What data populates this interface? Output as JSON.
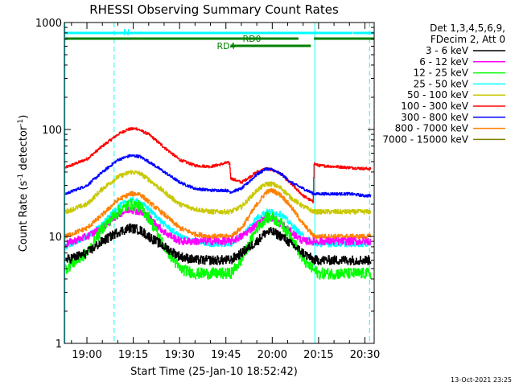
{
  "chart_data": {
    "type": "line",
    "title": "RHESSI Observing Summary Count Rates",
    "xlabel": "Start Time (25-Jan-10 18:52:42)",
    "ylabel_main": "Count Rate (s",
    "ylabel_sup1": "-1",
    "ylabel_mid": " detector",
    "ylabel_sup2": "-1",
    "ylabel_end": ")",
    "y_scale": "log",
    "ylim": [
      1,
      1000
    ],
    "xlim_minutes": [
      -7.3,
      93.0
    ],
    "x_ticks": [
      {
        "m": 0,
        "label": "19:00"
      },
      {
        "m": 15,
        "label": "19:15"
      },
      {
        "m": 30,
        "label": "19:30"
      },
      {
        "m": 45,
        "label": "19:45"
      },
      {
        "m": 60,
        "label": "20:00"
      },
      {
        "m": 75,
        "label": "20:15"
      },
      {
        "m": 90,
        "label": "20:30"
      }
    ],
    "y_ticks": [
      {
        "v": 1,
        "label": "1"
      },
      {
        "v": 10,
        "label": "10"
      },
      {
        "v": 100,
        "label": "100"
      },
      {
        "v": 1000,
        "label": "1000"
      }
    ],
    "legend": {
      "placement": "right",
      "header1": "Det 1,3,4,5,6,9,",
      "header2": "FDecim 2, Att 0",
      "entries": [
        {
          "label": "3 - 6 keV",
          "color": "#000000"
        },
        {
          "label": "6 - 12 keV",
          "color": "#ff00ff"
        },
        {
          "label": "12 - 25 keV",
          "color": "#00ff00"
        },
        {
          "label": "25 - 50 keV",
          "color": "#00ffff"
        },
        {
          "label": "50 - 100 keV",
          "color": "#c8c800"
        },
        {
          "label": "100 - 300 keV",
          "color": "#ff0000"
        },
        {
          "label": "300 - 800 keV",
          "color": "#0000ff"
        },
        {
          "label": "800 - 7000 keV",
          "color": "#ff8000"
        },
        {
          "label": "7000 - 15000 keV",
          "color": "#808000"
        }
      ]
    },
    "flags": [
      {
        "label": "N",
        "color": "#00ffff",
        "segments": [
          [
            -7.0,
            86.0
          ],
          [
            86.2,
            93.0
          ]
        ]
      },
      {
        "label": "RD0",
        "color": "#008000",
        "segments": [
          [
            -7.0,
            68.5
          ],
          [
            73.5,
            93.0
          ]
        ]
      },
      {
        "label": "RD4",
        "color": "#008000",
        "segments": [
          [
            46.5,
            72.5
          ]
        ]
      }
    ],
    "vlines": [
      {
        "m": -7.1,
        "color": "#00ffff",
        "style": "solid"
      },
      {
        "m": 8.8,
        "color": "#00ffff",
        "style": "dashed"
      },
      {
        "m": 73.8,
        "color": "#00ffff",
        "style": "solid"
      },
      {
        "m": 91.5,
        "color": "#00ffff",
        "style": "dashed"
      }
    ],
    "series": [
      {
        "name": "100 - 300 keV",
        "color": "#ff0000",
        "noise": 0.03,
        "x": [
          -7,
          0,
          5,
          10,
          13,
          16,
          20,
          25,
          30,
          35,
          40,
          43,
          45.5,
          46.2,
          46.5,
          50,
          55,
          58,
          60,
          63,
          66,
          70,
          73.2,
          73.5,
          75,
          80,
          85,
          90,
          92
        ],
        "y": [
          44,
          53,
          70,
          90,
          100,
          102,
          90,
          68,
          52,
          46,
          45,
          47,
          49,
          48,
          35,
          32,
          40,
          43,
          42,
          38,
          31,
          24,
          21,
          48,
          46,
          45,
          44,
          43,
          43
        ]
      },
      {
        "name": "300 - 800 keV",
        "color": "#0000ff",
        "noise": 0.03,
        "x": [
          -7,
          0,
          5,
          10,
          14,
          17,
          20,
          25,
          30,
          35,
          40,
          45,
          46.5,
          50,
          55,
          58,
          60,
          63,
          66,
          70,
          73.5,
          75,
          80,
          85,
          90,
          92
        ],
        "y": [
          25,
          30,
          40,
          52,
          57,
          56,
          50,
          40,
          32,
          28,
          27,
          27,
          26,
          28,
          38,
          43,
          42,
          38,
          32,
          28,
          25,
          25,
          25,
          25,
          24,
          24
        ]
      },
      {
        "name": "50 - 100 keV",
        "color": "#c8c800",
        "noise": 0.05,
        "x": [
          -7,
          0,
          5,
          10,
          14,
          17,
          20,
          25,
          30,
          35,
          40,
          45,
          46.5,
          50,
          55,
          58,
          60,
          63,
          66,
          70,
          73.5,
          75,
          80,
          85,
          90,
          92
        ],
        "y": [
          17,
          20,
          28,
          36,
          40,
          39,
          34,
          26,
          20,
          18,
          17,
          17,
          17,
          19,
          27,
          31,
          31,
          28,
          23,
          19,
          17,
          17,
          17,
          17,
          17,
          17
        ]
      },
      {
        "name": "800 - 7000 keV",
        "color": "#ff8000",
        "noise": 0.05,
        "x": [
          -7,
          0,
          5,
          10,
          14,
          17,
          20,
          25,
          30,
          35,
          40,
          45,
          46.5,
          50,
          55,
          58,
          60,
          63,
          66,
          70,
          73.5,
          75,
          80,
          85,
          90,
          92
        ],
        "y": [
          10,
          12,
          16,
          22,
          25,
          25,
          21,
          16,
          12,
          10.5,
          10,
          10,
          10,
          12,
          20,
          26,
          27,
          24,
          19,
          13,
          10,
          10,
          10,
          10,
          10,
          10
        ]
      },
      {
        "name": "25 - 50 keV",
        "color": "#00ffff",
        "noise": 0.06,
        "x": [
          -7,
          0,
          5,
          10,
          14,
          17,
          20,
          25,
          30,
          35,
          40,
          45,
          46.5,
          50,
          55,
          58,
          60,
          63,
          66,
          70,
          73.5,
          75,
          80,
          85,
          90,
          92
        ],
        "y": [
          8,
          10,
          13,
          19,
          22,
          21,
          18,
          13,
          10,
          9,
          8.5,
          8.5,
          8.5,
          10,
          15,
          17,
          17,
          16,
          13,
          10,
          8.5,
          8.5,
          8.5,
          8.5,
          8.5,
          8.5
        ]
      },
      {
        "name": "6 - 12 keV",
        "color": "#ff00ff",
        "noise": 0.08,
        "x": [
          -7,
          0,
          5,
          10,
          14,
          17,
          20,
          25,
          30,
          35,
          40,
          45,
          46.5,
          50,
          55,
          58,
          60,
          63,
          66,
          70,
          73.5,
          75,
          80,
          85,
          90,
          92
        ],
        "y": [
          8.5,
          10,
          12,
          16,
          18,
          17,
          15,
          11,
          9,
          9,
          9,
          9,
          9,
          10,
          13,
          15,
          15,
          13,
          11,
          9,
          9,
          9,
          9,
          9,
          9,
          9
        ]
      },
      {
        "name": "12 - 25 keV",
        "color": "#00ff00",
        "noise": 0.12,
        "x": [
          -7,
          0,
          5,
          10,
          14,
          17,
          20,
          25,
          30,
          35,
          40,
          45,
          46.5,
          50,
          55,
          58,
          60,
          63,
          66,
          70,
          73.5,
          75,
          80,
          85,
          90,
          92
        ],
        "y": [
          5,
          7,
          12,
          17,
          20,
          19,
          15,
          8,
          5,
          4.5,
          4.5,
          4.5,
          4.5,
          6,
          12,
          15,
          15,
          13,
          10,
          6,
          4.8,
          4.5,
          4.5,
          4.5,
          4.5,
          4.5
        ]
      },
      {
        "name": "3 - 6 keV",
        "color": "#000000",
        "noise": 0.1,
        "x": [
          -7,
          0,
          5,
          10,
          14,
          17,
          20,
          25,
          30,
          35,
          40,
          45,
          46.5,
          50,
          55,
          58,
          60,
          63,
          66,
          70,
          73.5,
          75,
          80,
          85,
          90,
          92
        ],
        "y": [
          6,
          7,
          9,
          11,
          12,
          11.5,
          10,
          8,
          6.5,
          6,
          6,
          6,
          6,
          7,
          9,
          11,
          11,
          10,
          8.5,
          7,
          6,
          6,
          6,
          6,
          6,
          6
        ]
      }
    ],
    "footer_timestamp": "13-Oct-2021 23:25"
  }
}
